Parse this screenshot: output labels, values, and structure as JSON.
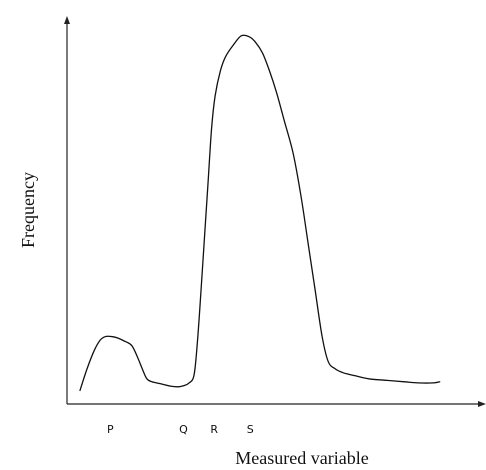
{
  "chart_data": {
    "type": "line",
    "xlabel": "Measured variable",
    "ylabel": "Frequency",
    "x_tick_labels": [
      {
        "label": "P",
        "x": 3.45
      },
      {
        "label": "Q",
        "x": 11.8
      },
      {
        "label": "R",
        "x": 15.3
      },
      {
        "label": "S",
        "x": 19.4
      }
    ],
    "xlim": [
      0,
      44
    ],
    "ylim": [
      0,
      100
    ],
    "axis_arrows": true,
    "grid": false,
    "legend": "none",
    "series": [
      {
        "x": [
          0.0,
          0.8,
          1.6,
          2.3,
          2.9,
          3.6,
          4.3,
          5.0,
          5.9,
          6.6,
          7.1,
          7.6,
          8.2,
          9.3,
          10.3,
          11.2,
          11.8,
          12.4,
          13.0,
          13.4,
          13.8,
          14.2,
          14.6,
          15.0,
          15.4,
          16.0,
          16.6,
          17.5,
          18.4,
          19.3,
          20.0,
          20.8,
          21.6,
          22.4,
          23.3,
          24.3,
          25.2,
          26.0,
          26.8,
          27.6,
          28.3,
          29.1,
          29.9,
          30.6,
          31.5,
          33.0,
          35.0,
          37.0,
          38.5,
          40.3,
          41.0
        ],
        "y": [
          1,
          7,
          12,
          15,
          16,
          16,
          15.6,
          14.8,
          13.5,
          10,
          7,
          4.3,
          3.4,
          2.8,
          2.2,
          2.0,
          2.3,
          3.0,
          5.3,
          15,
          29,
          44,
          59,
          74,
          83,
          90,
          94,
          97.3,
          99.8,
          99.5,
          98,
          95,
          90,
          84,
          76,
          67,
          55,
          42,
          29,
          16,
          9,
          7,
          6,
          5.5,
          5.0,
          4.2,
          3.8,
          3.4,
          3.1,
          3.1,
          3.4
        ]
      }
    ]
  }
}
